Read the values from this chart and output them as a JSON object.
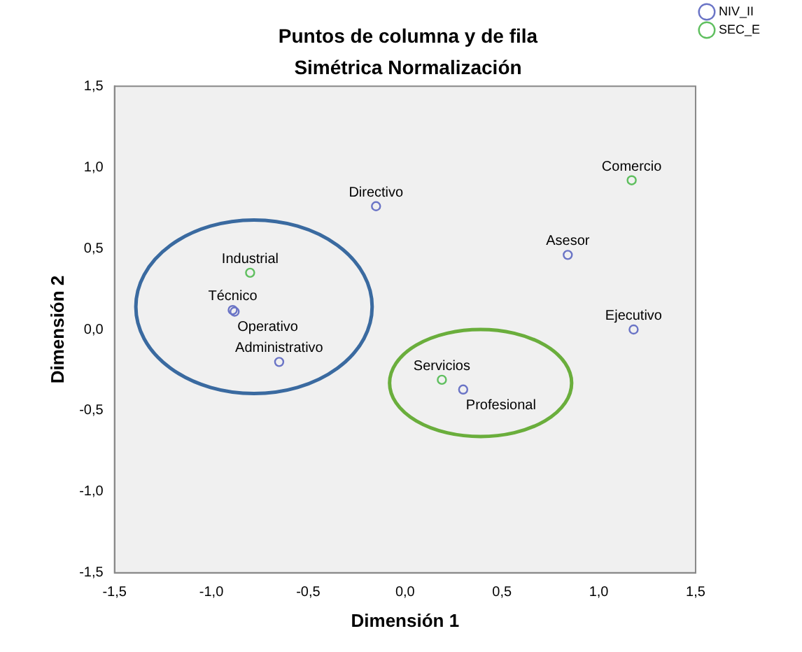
{
  "chart_data": {
    "type": "scatter",
    "title": "Puntos de columna y de fila",
    "subtitle": "Simétrica Normalización",
    "xlabel": "Dimensión 1",
    "ylabel": "Dimensión 2",
    "series": [
      {
        "name": "NIV_II",
        "color": "#6a74c6",
        "x": [
          -0.15,
          0.84,
          1.18,
          -0.89,
          -0.88,
          -0.65,
          0.3
        ],
        "values": [
          0.76,
          0.46,
          0.0,
          0.12,
          0.11,
          -0.2,
          -0.37
        ]
      },
      {
        "name": "SEC_E",
        "color": "#5fbf5f",
        "x": [
          1.17,
          -0.8,
          0.19
        ],
        "values": [
          0.92,
          0.35,
          -0.31
        ]
      }
    ],
    "annotations": [
      {
        "text": "Directivo",
        "x": -0.15,
        "y": 0.76
      },
      {
        "text": "Asesor",
        "x": 0.84,
        "y": 0.46
      },
      {
        "text": "Ejecutivo",
        "x": 1.18,
        "y": 0.0
      },
      {
        "text": "Técnico",
        "x": -0.89,
        "y": 0.12
      },
      {
        "text": "Operativo",
        "x": -0.88,
        "y": 0.11
      },
      {
        "text": "Administrativo",
        "x": -0.65,
        "y": -0.2
      },
      {
        "text": "Comercio",
        "x": 1.17,
        "y": 0.92
      },
      {
        "text": "Industrial",
        "x": -0.8,
        "y": 0.35
      },
      {
        "text": "Servicios",
        "x": 0.19,
        "y": -0.31
      },
      {
        "text": "Profesional",
        "x": 0.3,
        "y": -0.37
      }
    ],
    "xlim": [
      -1.5,
      1.5
    ],
    "ylim": [
      -1.5,
      1.5
    ],
    "xticks": [
      {
        "value": -1.5,
        "label": "-1,5"
      },
      {
        "value": -1.0,
        "label": "-1,0"
      },
      {
        "value": -0.5,
        "label": "-0,5"
      },
      {
        "value": 0,
        "label": "0,0"
      },
      {
        "value": 0.5,
        "label": "0,5"
      },
      {
        "value": 1.0,
        "label": "1,0"
      },
      {
        "value": 1.5,
        "label": "1,5"
      }
    ],
    "yticks": [
      {
        "value": -1.5,
        "label": "-1,5"
      },
      {
        "value": -1.0,
        "label": "-1,0"
      },
      {
        "value": -0.5,
        "label": "-0,5"
      },
      {
        "value": 0,
        "label": "0,0"
      },
      {
        "value": 0.5,
        "label": "0,5"
      },
      {
        "value": 1.0,
        "label": "1,0"
      },
      {
        "value": 1.5,
        "label": "1,5"
      }
    ],
    "grid": false,
    "legend": "top right",
    "marker": "circle"
  }
}
